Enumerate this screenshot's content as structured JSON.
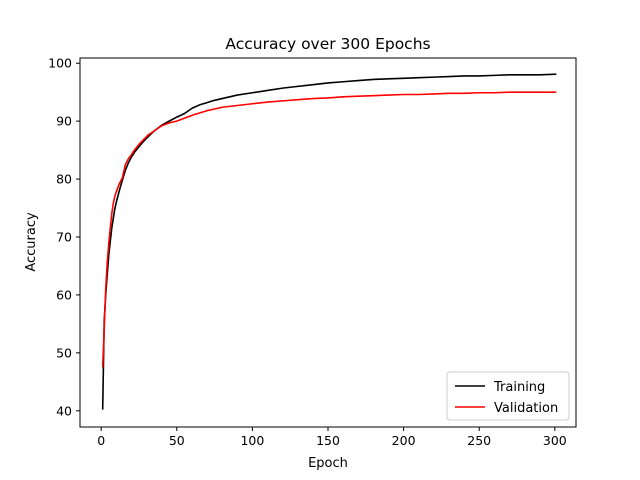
{
  "chart_data": {
    "type": "line",
    "title": "Accuracy over 300 Epochs",
    "xlabel": "Epoch",
    "ylabel": "Accuracy",
    "xlim": [
      -14,
      314
    ],
    "ylim": [
      37.2,
      100.9
    ],
    "xticks": [
      0,
      50,
      100,
      150,
      200,
      250,
      300
    ],
    "yticks": [
      40,
      50,
      60,
      70,
      80,
      90,
      100
    ],
    "grid": false,
    "legend_position": "lower-right",
    "series": [
      {
        "name": "Training",
        "color": "#000000",
        "x": [
          1,
          2,
          3,
          4,
          5,
          6,
          7,
          8,
          9,
          10,
          12,
          14,
          16,
          18,
          20,
          22,
          25,
          28,
          31,
          35,
          40,
          45,
          50,
          55,
          60,
          65,
          70,
          75,
          80,
          90,
          100,
          110,
          120,
          130,
          140,
          150,
          160,
          170,
          180,
          190,
          200,
          210,
          220,
          230,
          240,
          250,
          260,
          270,
          280,
          290,
          301
        ],
        "y": [
          40.2,
          55.5,
          60.0,
          63.5,
          66.8,
          69.2,
          71.5,
          73.2,
          74.8,
          76.0,
          78.0,
          79.8,
          81.5,
          82.8,
          83.8,
          84.6,
          85.6,
          86.5,
          87.3,
          88.3,
          89.3,
          90.0,
          90.7,
          91.3,
          92.2,
          92.8,
          93.2,
          93.6,
          93.9,
          94.5,
          94.9,
          95.3,
          95.7,
          96.0,
          96.3,
          96.6,
          96.8,
          97.0,
          97.2,
          97.3,
          97.4,
          97.5,
          97.6,
          97.7,
          97.8,
          97.8,
          97.9,
          98.0,
          98.0,
          98.0,
          98.1
        ]
      },
      {
        "name": "Validation",
        "color": "#ff0000",
        "x": [
          1,
          2,
          3,
          4,
          5,
          6,
          7,
          8,
          9,
          10,
          12,
          14,
          16,
          18,
          20,
          22,
          25,
          28,
          31,
          35,
          40,
          45,
          50,
          55,
          60,
          65,
          70,
          75,
          80,
          90,
          100,
          110,
          120,
          130,
          140,
          150,
          160,
          170,
          180,
          190,
          200,
          210,
          220,
          230,
          240,
          250,
          260,
          270,
          280,
          290,
          301
        ],
        "y": [
          47.5,
          54.0,
          61.0,
          65.5,
          68.8,
          71.5,
          74.0,
          75.8,
          77.0,
          77.8,
          79.2,
          80.2,
          82.5,
          83.5,
          84.2,
          85.0,
          86.0,
          86.8,
          87.6,
          88.3,
          89.2,
          89.7,
          90.0,
          90.5,
          91.0,
          91.4,
          91.8,
          92.1,
          92.4,
          92.7,
          93.0,
          93.3,
          93.5,
          93.7,
          93.9,
          94.0,
          94.2,
          94.3,
          94.4,
          94.5,
          94.6,
          94.6,
          94.7,
          94.8,
          94.8,
          94.9,
          94.9,
          95.0,
          95.0,
          95.0,
          95.0
        ]
      }
    ]
  }
}
